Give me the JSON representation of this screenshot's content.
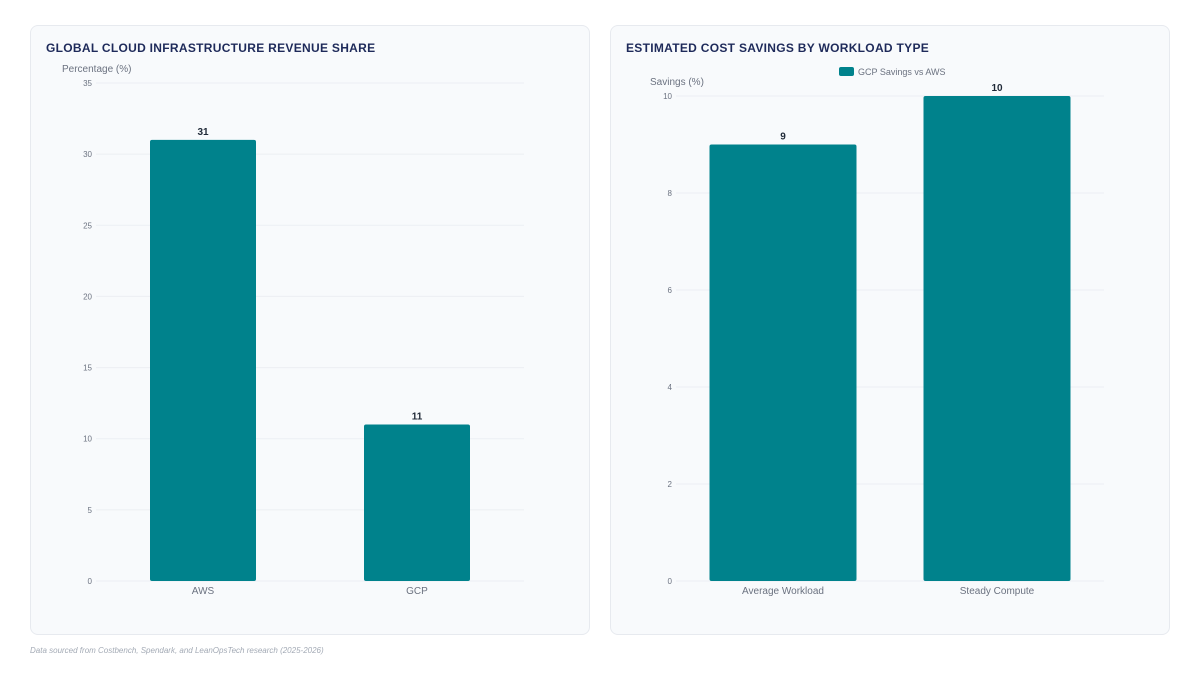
{
  "footer": {
    "source_note": "Data sourced from Costbench, Spendark, and LeanOpsTech research (2025-2026)"
  },
  "colors": {
    "bar": "#00828c",
    "grid": "#eceff3",
    "axis_text": "#6b7280",
    "title": "#1e2a5a",
    "value_label": "#1f2937"
  },
  "chart_data": [
    {
      "type": "bar",
      "title": "GLOBAL CLOUD INFRASTRUCTURE REVENUE SHARE",
      "ylabel": "Percentage (%)",
      "xlabel": "",
      "categories": [
        "AWS",
        "GCP"
      ],
      "values": [
        31,
        11
      ],
      "data_labels": [
        "31",
        "11"
      ],
      "ylim": [
        0,
        35
      ],
      "yticks": [
        0,
        5,
        10,
        15,
        20,
        25,
        30,
        35
      ],
      "grid": true,
      "legend": null
    },
    {
      "type": "bar",
      "title": "ESTIMATED COST SAVINGS BY WORKLOAD TYPE",
      "ylabel": "Savings (%)",
      "xlabel": "",
      "categories": [
        "Average Workload",
        "Steady Compute"
      ],
      "series": [
        {
          "name": "GCP Savings vs AWS",
          "values": [
            9,
            10
          ]
        }
      ],
      "data_labels": [
        "9",
        "10"
      ],
      "ylim": [
        0,
        10
      ],
      "yticks": [
        0,
        2,
        4,
        6,
        8,
        10
      ],
      "grid": true,
      "legend": "top-center"
    }
  ]
}
